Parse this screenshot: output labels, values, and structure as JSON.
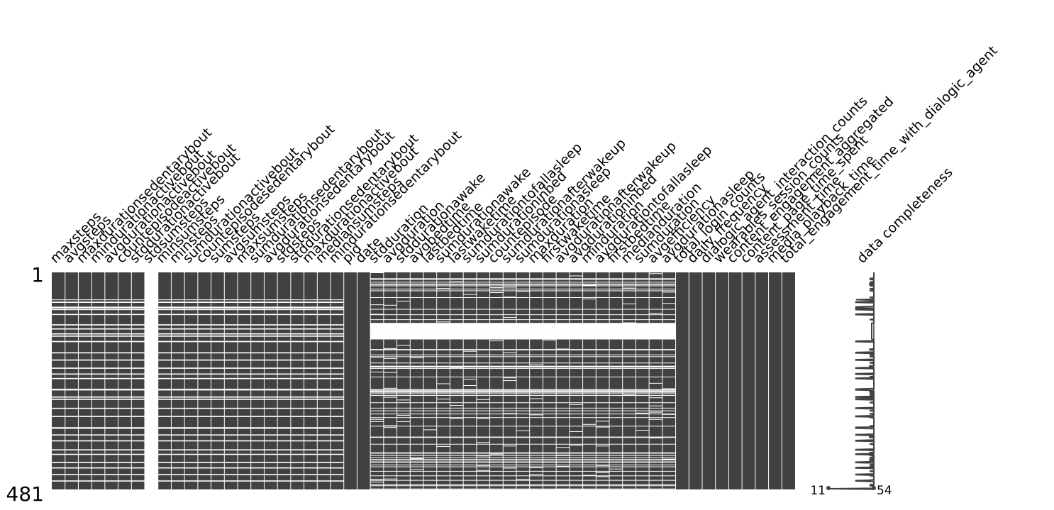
{
  "chart_data": {
    "type": "heatmap",
    "variant": "missingness-matrix",
    "colors": {
      "present": "#414141",
      "missing": "#ffffff",
      "spark": "#414141"
    },
    "rows": {
      "first": "1",
      "last": "481",
      "count": 481
    },
    "columns": [
      {
        "name": "maxsteps",
        "group": "A"
      },
      {
        "name": "avgsteps",
        "group": "A"
      },
      {
        "name": "maxdurationsedentarybout",
        "group": "A"
      },
      {
        "name": "mindurationactivebout",
        "group": "A"
      },
      {
        "name": "avgdurationactivebout",
        "group": "A"
      },
      {
        "name": "countepisodeactivebout",
        "group": "A"
      },
      {
        "name": "stddurationactivebout",
        "group": "A"
      },
      {
        "name": "stdsumsteps",
        "group": "EMPTY"
      },
      {
        "name": "minsumsteps",
        "group": "A"
      },
      {
        "name": "minsteps",
        "group": "A"
      },
      {
        "name": "sumdurationactivebout",
        "group": "A"
      },
      {
        "name": "countepisodesedentarybout",
        "group": "A"
      },
      {
        "name": "sumsteps",
        "group": "A"
      },
      {
        "name": "avgsumsteps",
        "group": "A"
      },
      {
        "name": "maxsumsteps",
        "group": "A"
      },
      {
        "name": "sumdurationsedentarybout",
        "group": "A"
      },
      {
        "name": "avgdurationsedentarybout",
        "group": "A"
      },
      {
        "name": "stdsteps",
        "group": "A"
      },
      {
        "name": "stddurationsedentarybout",
        "group": "A"
      },
      {
        "name": "maxdurationactivebout",
        "group": "A"
      },
      {
        "name": "mediansumsteps",
        "group": "A"
      },
      {
        "name": "mindurationsedentarybout",
        "group": "A"
      },
      {
        "name": "pid",
        "group": "FULL"
      },
      {
        "name": "date",
        "group": "FULL"
      },
      {
        "name": "stdduration",
        "group": "B"
      },
      {
        "name": "avgduration",
        "group": "B"
      },
      {
        "name": "stddurationawake",
        "group": "B"
      },
      {
        "name": "avgbedtime",
        "group": "B"
      },
      {
        "name": "lastbedtime",
        "group": "B"
      },
      {
        "name": "sumdurationawake",
        "group": "B"
      },
      {
        "name": "lastwaketime",
        "group": "B"
      },
      {
        "name": "sumdurationtofallasleep",
        "group": "B"
      },
      {
        "name": "sumdurationinbed",
        "group": "B"
      },
      {
        "name": "countepisode",
        "group": "B"
      },
      {
        "name": "sumdurationafterwakeup",
        "group": "B"
      },
      {
        "name": "sumdurationasleep",
        "group": "B"
      },
      {
        "name": "maxduration",
        "group": "B"
      },
      {
        "name": "firstwaketime",
        "group": "B"
      },
      {
        "name": "avgdurationafterwakeup",
        "group": "B"
      },
      {
        "name": "avgdurationinbed",
        "group": "B"
      },
      {
        "name": "minduration",
        "group": "B"
      },
      {
        "name": "avgdurationtofallasleep",
        "group": "B"
      },
      {
        "name": "firstbedtime",
        "group": "B"
      },
      {
        "name": "medianduration",
        "group": "B"
      },
      {
        "name": "sumduration",
        "group": "B"
      },
      {
        "name": "avgefficiency",
        "group": "B"
      },
      {
        "name": "avgdurationasleep",
        "group": "B"
      },
      {
        "name": "total_login_counts",
        "group": "FULL"
      },
      {
        "name": "daily_frequency",
        "group": "FULL"
      },
      {
        "name": "dialogic_agent_interaction_counts",
        "group": "FULL"
      },
      {
        "name": "wearables_session_counts",
        "group": "FULL"
      },
      {
        "name": "content_engagement_aggregated",
        "group": "FULL"
      },
      {
        "name": "content_page_time_spent",
        "group": "FULL"
      },
      {
        "name": "assessment_time",
        "group": "FULL"
      },
      {
        "name": "media_playback_time",
        "group": "FULL"
      },
      {
        "name": "total_engagement_time_with_dialogic_agent",
        "group": "FULL"
      }
    ],
    "sparkline": {
      "label": "data completeness",
      "min_label": "11",
      "max_label": "54",
      "min": 11,
      "max": 54
    }
  }
}
